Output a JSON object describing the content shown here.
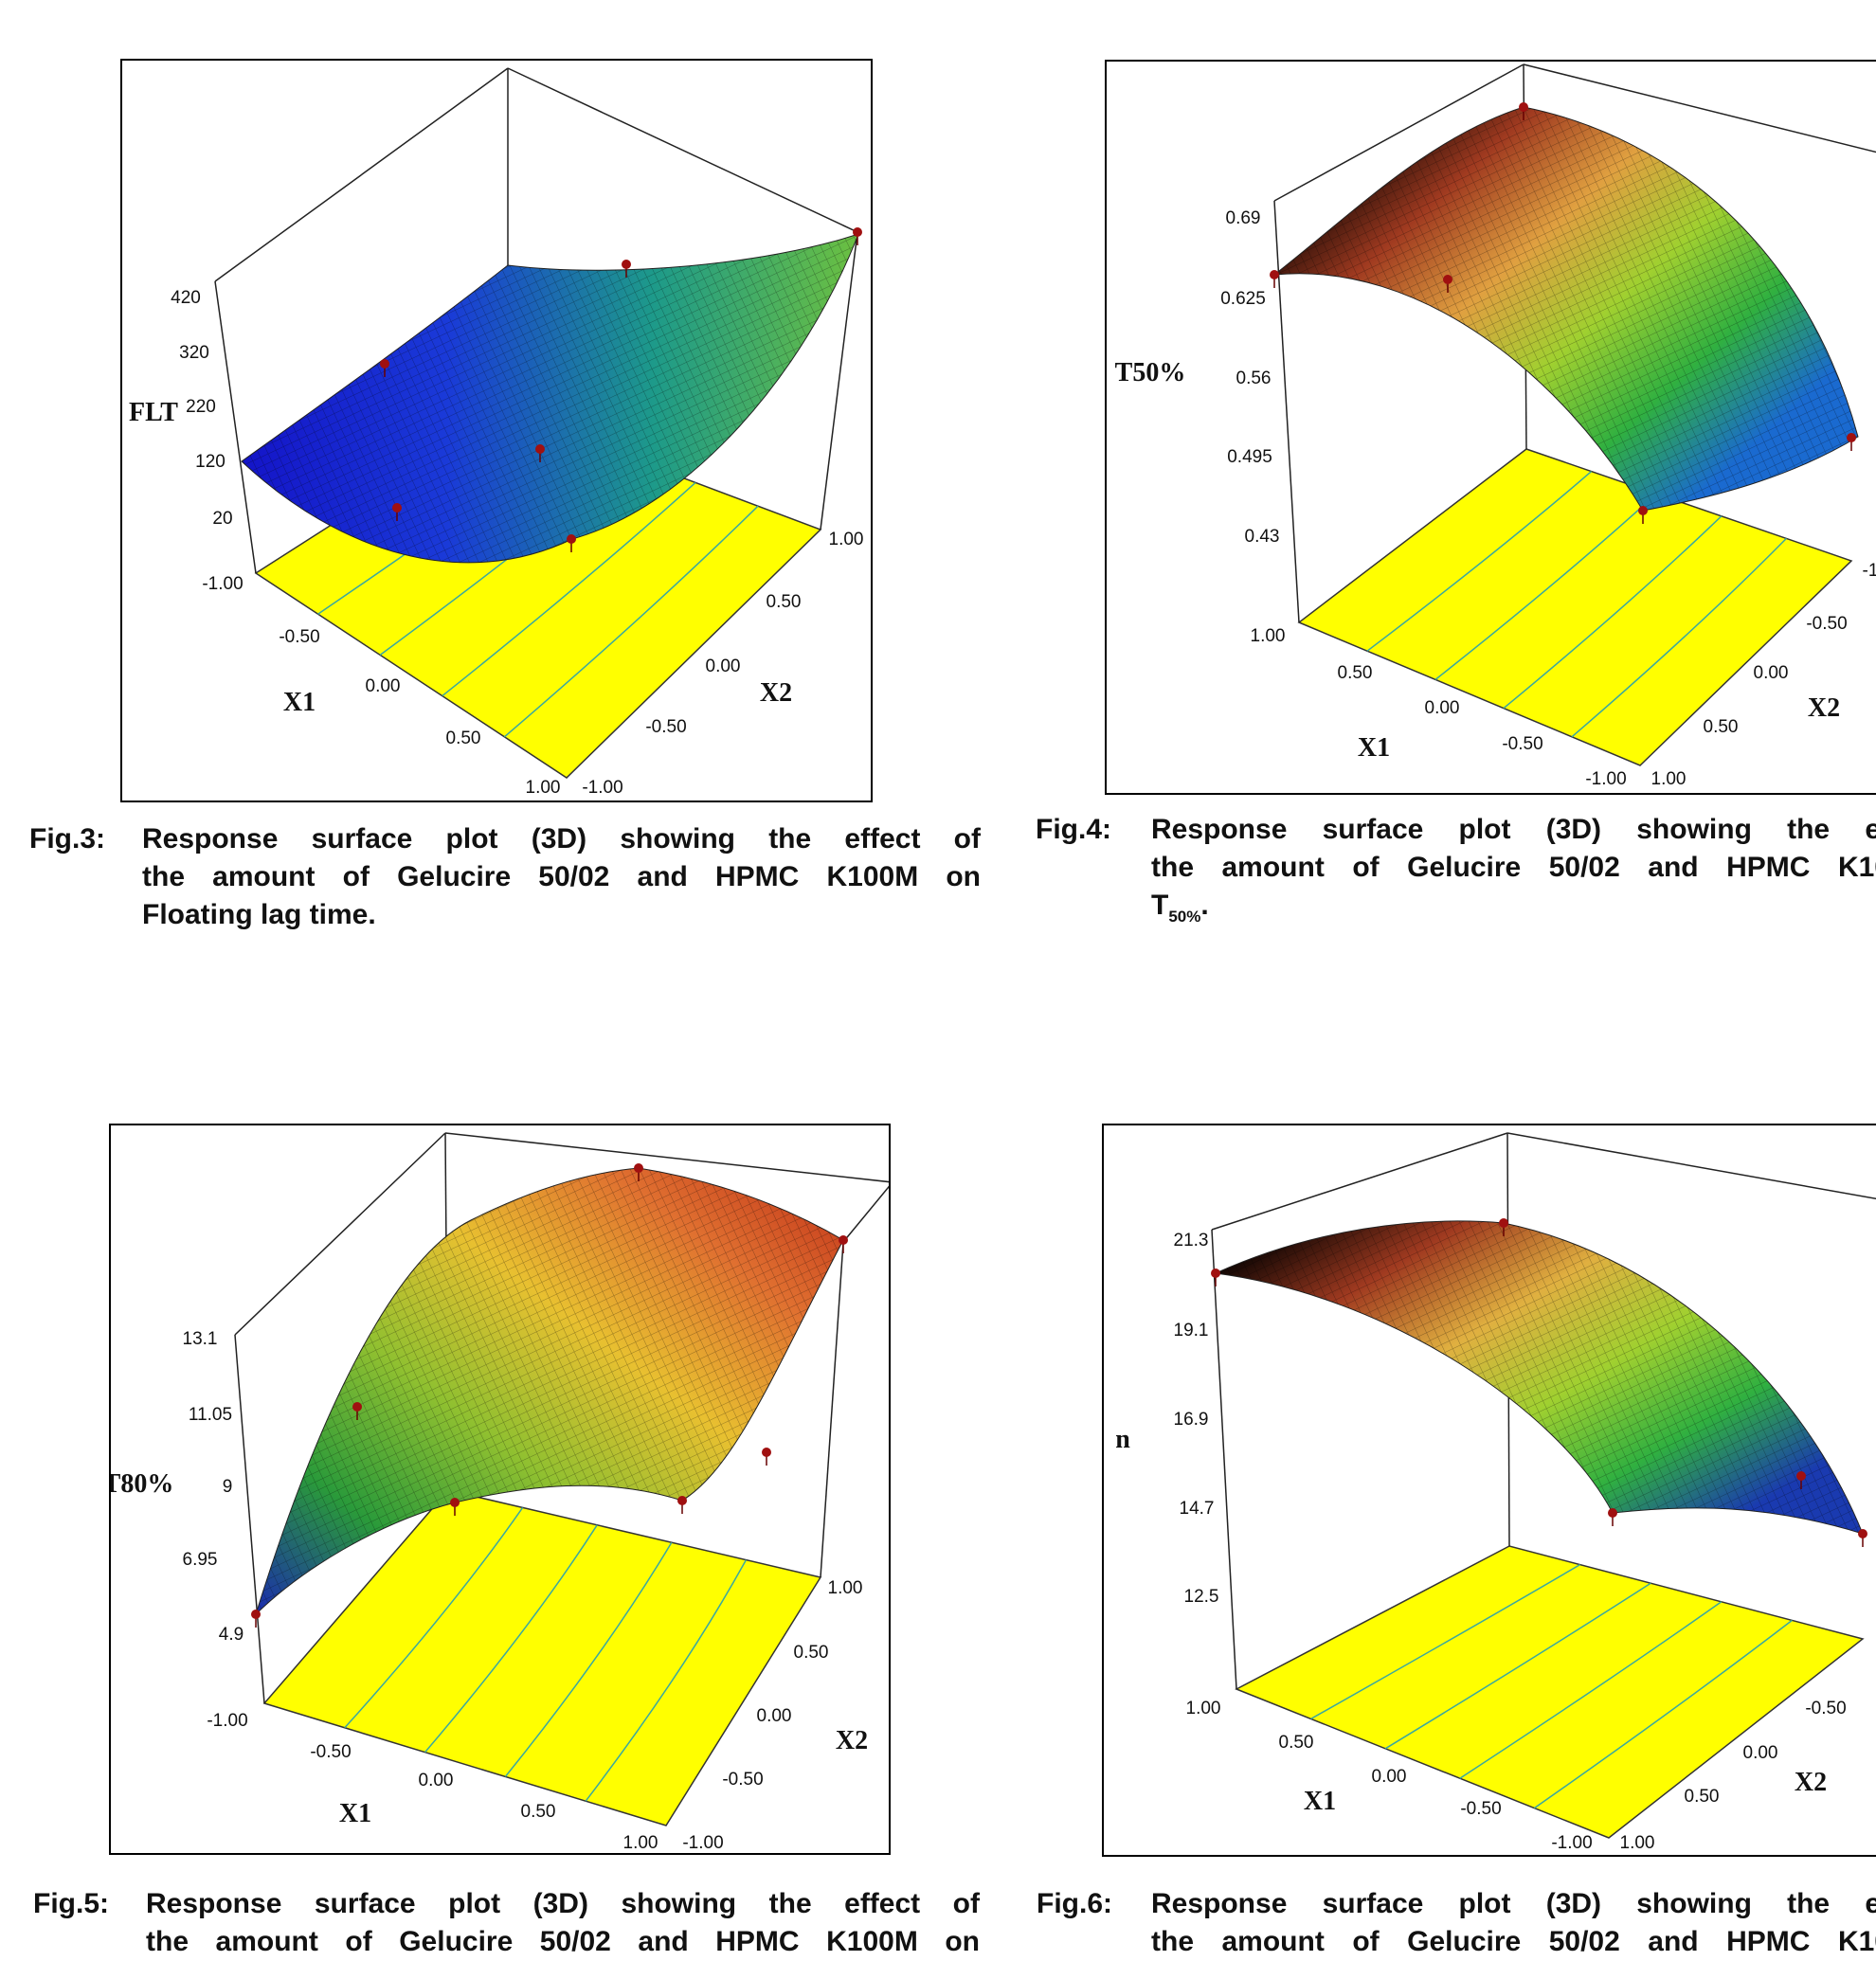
{
  "chart_data": [
    {
      "type": "surface3d",
      "zlabel": "FLT",
      "x1label": "X1",
      "x2label": "X2",
      "zticks": [
        "420",
        "320",
        "220",
        "120",
        "20"
      ],
      "x1ticks": [
        "-1.00",
        "-0.50",
        "0.00",
        "0.50",
        "1.00"
      ],
      "x2ticks": [
        "-1.00",
        "-0.50",
        "0.00",
        "0.50",
        "1.00"
      ],
      "colors": [
        "#1414c8",
        "#1a3ad8",
        "#1d9a8a",
        "#6cc040"
      ],
      "floor_color": "#ffff00"
    },
    {
      "type": "surface3d",
      "zlabel": "T50%",
      "x1label": "X1",
      "x2label": "X2",
      "zticks": [
        "0.69",
        "0.625",
        "0.56",
        "0.495",
        "0.43"
      ],
      "x1ticks": [
        "1.00",
        "0.50",
        "0.00",
        "-0.50",
        "-1.00"
      ],
      "x2ticks": [
        "1.00",
        "0.50",
        "0.00",
        "-0.50",
        "-1"
      ],
      "colors": [
        "#000000",
        "#a03a20",
        "#e0a040",
        "#a0d030",
        "#30b040",
        "#1a6ad0"
      ],
      "floor_color": "#ffff00"
    },
    {
      "type": "surface3d",
      "zlabel": "T80%",
      "x1label": "X1",
      "x2label": "X2",
      "zticks": [
        "13.1",
        "11.05",
        "9",
        "6.95",
        "4.9"
      ],
      "x1ticks": [
        "-1.00",
        "-0.50",
        "0.00",
        "0.50",
        "1.00"
      ],
      "x2ticks": [
        "-1.00",
        "-0.50",
        "0.00",
        "0.50",
        "1.00"
      ],
      "colors": [
        "#1a2ab0",
        "#2a9a3a",
        "#90c030",
        "#e8c030",
        "#e07030",
        "#c03018"
      ],
      "floor_color": "#ffff00"
    },
    {
      "type": "surface3d",
      "zlabel": "n",
      "x1label": "X1",
      "x2label": "X2",
      "zticks": [
        "21.3",
        "19.1",
        "16.9",
        "14.7",
        "12.5"
      ],
      "x1ticks": [
        "1.00",
        "0.50",
        "0.00",
        "-0.50",
        "-1.00"
      ],
      "x2ticks": [
        "1.00",
        "0.50",
        "0.00",
        "-0.50"
      ],
      "colors": [
        "#000000",
        "#a03a20",
        "#e0b040",
        "#a0d030",
        "#30b040",
        "#1a3ab0"
      ],
      "floor_color": "#ffff00"
    }
  ],
  "captions": [
    {
      "label": "Fig.3:",
      "lines": [
        "Response surface plot (3D) showing the effect of",
        "the amount of Gelucire 50/02 and HPMC K100M on",
        "Floating lag time."
      ]
    },
    {
      "label": "Fig.4:",
      "lines": [
        "Response surface plot (3D) showing the ef",
        "the amount of Gelucire 50/02 and HPMC K10"
      ],
      "last_main": "T",
      "last_sub": "50%",
      "last_tail": "."
    },
    {
      "label": "Fig.5:",
      "lines": [
        "Response surface plot (3D) showing the effect of",
        "the amount of Gelucire 50/02 and HPMC K100M on"
      ]
    },
    {
      "label": "Fig.6:",
      "lines": [
        "Response surface plot (3D) showing the ef",
        "the amount of Gelucire 50/02 and HPMC K10"
      ]
    }
  ]
}
